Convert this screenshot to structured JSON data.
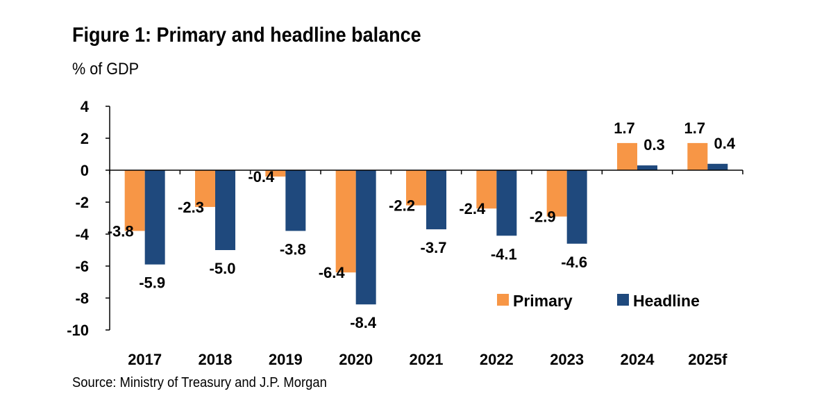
{
  "title": "Figure 1: Primary and headline balance",
  "subtitle": "% of GDP",
  "source": "Source: Ministry of Treasury and J.P. Morgan",
  "colors": {
    "primary": "#F79646",
    "headline": "#1F497D"
  },
  "chart_data": {
    "type": "bar",
    "title": "Figure 1: Primary and headline balance",
    "ylabel": "% of GDP",
    "xlabel": "",
    "categories": [
      "2017",
      "2018",
      "2019",
      "2020",
      "2021",
      "2022",
      "2023",
      "2024",
      "2025f"
    ],
    "series": [
      {
        "name": "Primary",
        "color": "#F79646",
        "values": [
          -3.8,
          -2.3,
          -0.4,
          -6.4,
          -2.2,
          -2.4,
          -2.9,
          1.7,
          1.7
        ],
        "labels": [
          "-3.8",
          "-2.3",
          "-0.4",
          "-6.4",
          "-2.2",
          "-2.4",
          "-2.9",
          "1.7",
          "1.7"
        ]
      },
      {
        "name": "Headline",
        "color": "#1F497D",
        "values": [
          -5.9,
          -5.0,
          -3.8,
          -8.4,
          -3.7,
          -4.1,
          -4.6,
          0.3,
          0.4
        ],
        "labels": [
          "-5.9",
          "-5.0",
          "-3.8",
          "-8.4",
          "-3.7",
          "-4.1",
          "-4.6",
          "0.3",
          "0.4"
        ]
      }
    ],
    "ylim": [
      -10,
      4
    ],
    "yticks": [
      4,
      2,
      0,
      -2,
      -4,
      -6,
      -8,
      -10
    ],
    "ytick_labels": [
      "4",
      "2",
      "0",
      "-2",
      "-4",
      "-6",
      "-8",
      "-10"
    ],
    "grid": false,
    "legend_position": "lower-right"
  }
}
